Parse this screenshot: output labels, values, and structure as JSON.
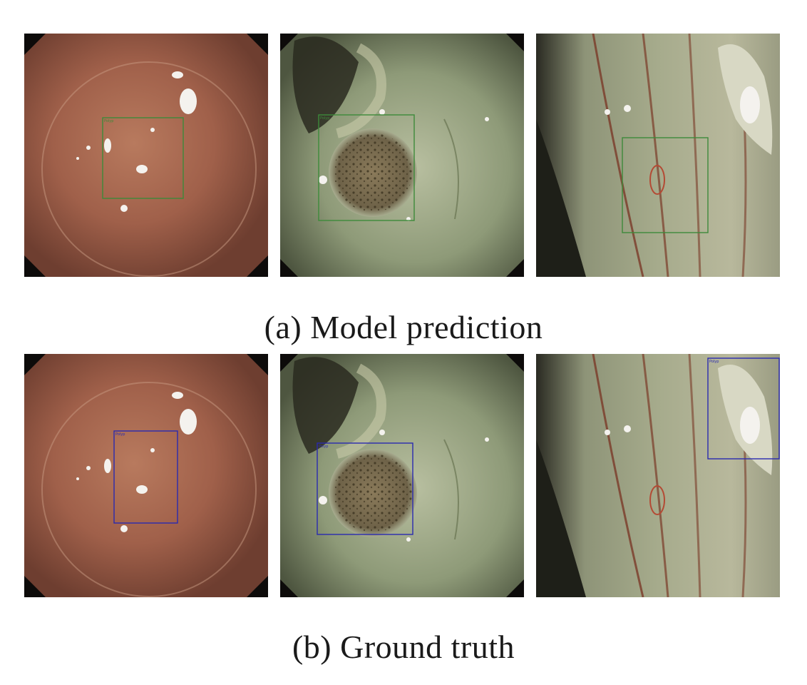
{
  "figure": {
    "captions": {
      "a": "(a) Model prediction",
      "b": "(b) Ground truth"
    },
    "box_label": "Polyp",
    "colors": {
      "prediction_box": "#3d8a3a",
      "ground_truth_box": "#2a2ab0",
      "tissue_red": "#a0604a",
      "tissue_green": "#9aa882",
      "background": "#0d0b0a"
    },
    "rows": [
      {
        "name": "model-prediction",
        "panels": [
          "image-1",
          "image-2",
          "image-3"
        ]
      },
      {
        "name": "ground-truth",
        "panels": [
          "image-1",
          "image-2",
          "image-3"
        ]
      }
    ]
  }
}
